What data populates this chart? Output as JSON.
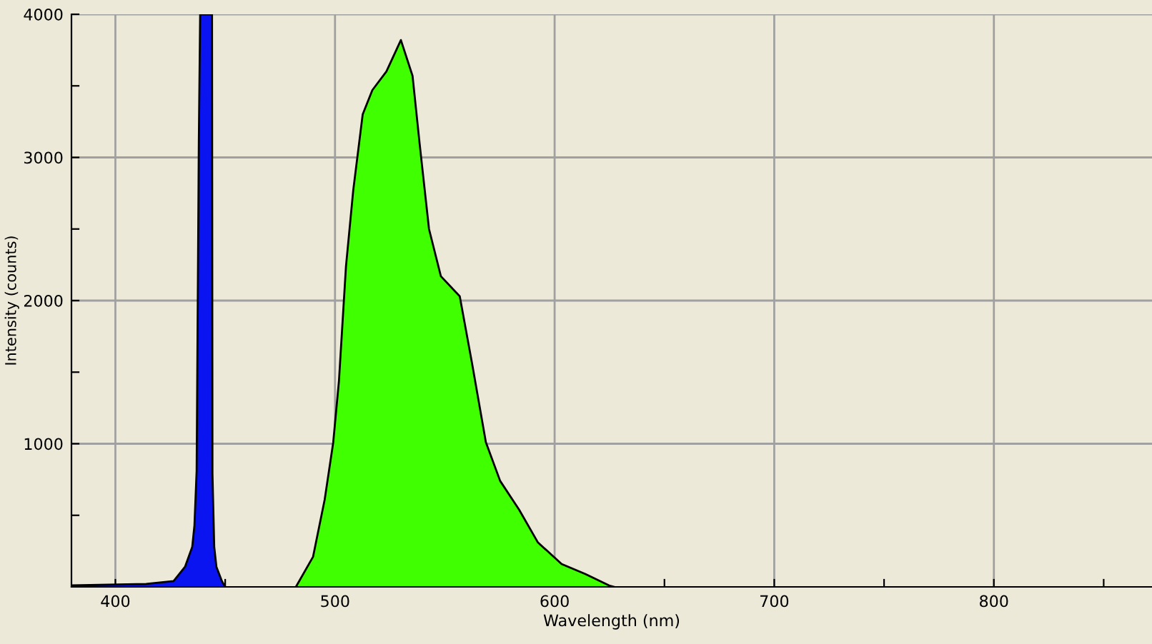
{
  "chart_data": {
    "type": "area",
    "xlabel": "Wavelength (nm)",
    "ylabel": "Intensity (counts)",
    "xlim": [
      380,
      872
    ],
    "ylim": [
      0,
      4000
    ],
    "xticks": [
      {
        "value": 400,
        "label": "400"
      },
      {
        "value": 450,
        "label": null
      },
      {
        "value": 500,
        "label": "500"
      },
      {
        "value": 550,
        "label": null
      },
      {
        "value": 600,
        "label": "600"
      },
      {
        "value": 650,
        "label": null
      },
      {
        "value": 700,
        "label": "700"
      },
      {
        "value": 750,
        "label": null
      },
      {
        "value": 800,
        "label": "800"
      },
      {
        "value": 850,
        "label": null
      }
    ],
    "yticks": [
      {
        "value": 500,
        "label": null
      },
      {
        "value": 1000,
        "label": "1000"
      },
      {
        "value": 1500,
        "label": null
      },
      {
        "value": 2000,
        "label": "2000"
      },
      {
        "value": 2500,
        "label": null
      },
      {
        "value": 3000,
        "label": "3000"
      },
      {
        "value": 3500,
        "label": null
      },
      {
        "value": 4000,
        "label": "4000"
      }
    ],
    "grid": true,
    "series": [
      {
        "color": "#0a14f0",
        "x": [
          380,
          414,
          426.5,
          431.7,
          435,
          436,
          437,
          438,
          438.6,
          444,
          444.2,
          445,
          446,
          448.5,
          450
        ],
        "values": [
          10,
          20,
          40,
          140,
          280,
          430,
          810,
          3120,
          4000,
          4000,
          790,
          280,
          140,
          40,
          0
        ]
      },
      {
        "color": "#40ff00",
        "x": [
          482.2,
          490,
          495.3,
          499.2,
          501.8,
          505,
          508.3,
          512.6,
          517,
          523.4,
          530,
          535.3,
          538.5,
          542.8,
          548.2,
          556.8,
          562.3,
          568.7,
          575.2,
          583.8,
          592.4,
          603.2,
          614,
          624.8,
          627
        ],
        "values": [
          0,
          210,
          610,
          1010,
          1440,
          2240,
          2770,
          3300,
          3470,
          3600,
          3820,
          3570,
          3100,
          2500,
          2170,
          2030,
          1570,
          1010,
          740,
          540,
          310,
          160,
          90,
          10,
          0
        ]
      }
    ]
  }
}
